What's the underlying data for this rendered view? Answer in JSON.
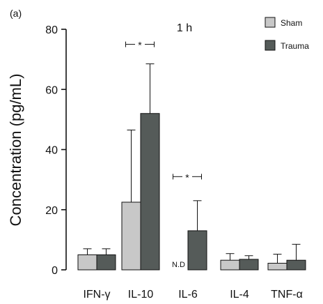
{
  "chart_data": {
    "type": "bar",
    "panel_label": "(a)",
    "title": "1 h",
    "ylabel": "Concentration (pg/mL)",
    "ylim": [
      0,
      80
    ],
    "yticks": [
      "0",
      "20",
      "40",
      "60",
      "80"
    ],
    "categories": [
      "IFN-γ",
      "IL-10",
      "IL-6",
      "IL-4",
      "TNF-α"
    ],
    "series": [
      {
        "name": "Sham",
        "color": "#c8c8c8",
        "values": [
          5.0,
          22.5,
          null,
          3.2,
          2.2
        ],
        "errors": [
          2.0,
          24.0,
          null,
          2.2,
          3.0
        ]
      },
      {
        "name": "Trauma",
        "color": "#555b59",
        "values": [
          5.0,
          52.0,
          13.0,
          3.5,
          3.2
        ],
        "errors": [
          2.0,
          16.5,
          10.0,
          1.2,
          5.3
        ]
      }
    ],
    "annotations": [
      {
        "text": "N.D",
        "category": "IL-6",
        "series": "Sham"
      },
      {
        "text": "*",
        "category": "IL-10",
        "type": "significance",
        "y": 75
      },
      {
        "text": "*",
        "category": "IL-6",
        "type": "significance",
        "y": 31
      }
    ],
    "legend_position": "top-right",
    "grid": false
  }
}
